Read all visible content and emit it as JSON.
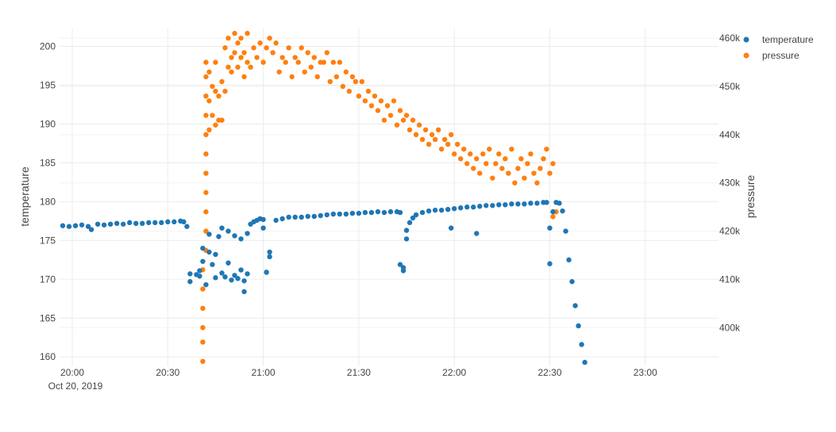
{
  "chart_data": {
    "type": "scatter",
    "title": "",
    "x_date_label": "Oct 20, 2019",
    "xlabel": "",
    "xlim": [
      "19:56",
      "23:23"
    ],
    "x_ticks": [
      "20:00",
      "20:30",
      "21:00",
      "21:30",
      "22:00",
      "22:30",
      "23:00"
    ],
    "y_left": {
      "label": "temperature",
      "ylim": [
        158.8,
        202.3
      ],
      "ticks": [
        "160",
        "165",
        "170",
        "175",
        "180",
        "185",
        "190",
        "195",
        "200"
      ]
    },
    "y_right": {
      "label": "pressure",
      "ylim": [
        392000,
        462000
      ],
      "ticks": [
        "400k",
        "410k",
        "420k",
        "430k",
        "440k",
        "450k",
        "460k"
      ]
    },
    "grid": true,
    "legend_position": "top-right",
    "colors": {
      "temperature": "#1f77b4",
      "pressure": "#ff7f0e"
    },
    "series": [
      {
        "name": "temperature",
        "axis": "left",
        "points": [
          [
            "19:57",
            176.9
          ],
          [
            "19:59",
            176.8
          ],
          [
            "20:01",
            176.9
          ],
          [
            "20:03",
            177.0
          ],
          [
            "20:05",
            176.8
          ],
          [
            "20:06",
            176.4
          ],
          [
            "20:08",
            177.1
          ],
          [
            "20:10",
            177.0
          ],
          [
            "20:12",
            177.1
          ],
          [
            "20:14",
            177.2
          ],
          [
            "20:16",
            177.1
          ],
          [
            "20:18",
            177.3
          ],
          [
            "20:20",
            177.2
          ],
          [
            "20:22",
            177.2
          ],
          [
            "20:24",
            177.3
          ],
          [
            "20:26",
            177.3
          ],
          [
            "20:28",
            177.3
          ],
          [
            "20:30",
            177.4
          ],
          [
            "20:32",
            177.4
          ],
          [
            "20:34",
            177.5
          ],
          [
            "20:35",
            177.4
          ],
          [
            "20:36",
            176.8
          ],
          [
            "20:37",
            170.7
          ],
          [
            "20:37",
            169.7
          ],
          [
            "20:39",
            170.6
          ],
          [
            "20:40",
            170.4
          ],
          [
            "20:40",
            171.1
          ],
          [
            "20:41",
            174.0
          ],
          [
            "20:41",
            172.3
          ],
          [
            "20:42",
            169.3
          ],
          [
            "20:43",
            175.8
          ],
          [
            "20:43",
            173.5
          ],
          [
            "20:44",
            171.9
          ],
          [
            "20:45",
            170.2
          ],
          [
            "20:45",
            173.2
          ],
          [
            "20:46",
            175.5
          ],
          [
            "20:47",
            176.6
          ],
          [
            "20:47",
            170.8
          ],
          [
            "20:48",
            170.3
          ],
          [
            "20:49",
            172.1
          ],
          [
            "20:49",
            176.2
          ],
          [
            "20:50",
            169.9
          ],
          [
            "20:51",
            175.6
          ],
          [
            "20:51",
            170.5
          ],
          [
            "20:52",
            170.1
          ],
          [
            "20:53",
            171.2
          ],
          [
            "20:53",
            175.2
          ],
          [
            "20:54",
            169.8
          ],
          [
            "20:54",
            168.4
          ],
          [
            "20:55",
            175.9
          ],
          [
            "20:55",
            170.7
          ],
          [
            "20:56",
            177.1
          ],
          [
            "20:57",
            177.4
          ],
          [
            "20:58",
            177.6
          ],
          [
            "20:59",
            177.8
          ],
          [
            "21:00",
            177.7
          ],
          [
            "21:00",
            176.6
          ],
          [
            "21:01",
            170.9
          ],
          [
            "21:01",
            170.9
          ],
          [
            "21:02",
            172.9
          ],
          [
            "21:02",
            173.5
          ],
          [
            "21:04",
            177.6
          ],
          [
            "21:06",
            177.8
          ],
          [
            "21:08",
            178.0
          ],
          [
            "21:10",
            178.0
          ],
          [
            "21:12",
            178.0
          ],
          [
            "21:14",
            178.1
          ],
          [
            "21:16",
            178.1
          ],
          [
            "21:18",
            178.2
          ],
          [
            "21:20",
            178.3
          ],
          [
            "21:22",
            178.4
          ],
          [
            "21:24",
            178.4
          ],
          [
            "21:26",
            178.4
          ],
          [
            "21:28",
            178.5
          ],
          [
            "21:30",
            178.5
          ],
          [
            "21:32",
            178.6
          ],
          [
            "21:34",
            178.6
          ],
          [
            "21:36",
            178.7
          ],
          [
            "21:38",
            178.6
          ],
          [
            "21:40",
            178.7
          ],
          [
            "21:42",
            178.7
          ],
          [
            "21:43",
            178.6
          ],
          [
            "21:43",
            171.9
          ],
          [
            "21:44",
            171.1
          ],
          [
            "21:44",
            171.5
          ],
          [
            "21:45",
            175.2
          ],
          [
            "21:45",
            176.3
          ],
          [
            "21:46",
            177.3
          ],
          [
            "21:47",
            177.9
          ],
          [
            "21:48",
            178.3
          ],
          [
            "21:50",
            178.6
          ],
          [
            "21:52",
            178.8
          ],
          [
            "21:54",
            178.9
          ],
          [
            "21:56",
            178.9
          ],
          [
            "21:58",
            179.0
          ],
          [
            "21:59",
            176.6
          ],
          [
            "22:00",
            179.1
          ],
          [
            "22:02",
            179.2
          ],
          [
            "22:04",
            179.3
          ],
          [
            "22:06",
            179.3
          ],
          [
            "22:07",
            175.9
          ],
          [
            "22:08",
            179.4
          ],
          [
            "22:10",
            179.5
          ],
          [
            "22:12",
            179.5
          ],
          [
            "22:14",
            179.6
          ],
          [
            "22:16",
            179.6
          ],
          [
            "22:18",
            179.7
          ],
          [
            "22:20",
            179.7
          ],
          [
            "22:22",
            179.7
          ],
          [
            "22:24",
            179.8
          ],
          [
            "22:26",
            179.8
          ],
          [
            "22:28",
            179.9
          ],
          [
            "22:29",
            179.9
          ],
          [
            "22:30",
            172.0
          ],
          [
            "22:30",
            176.6
          ],
          [
            "22:31",
            178.7
          ],
          [
            "22:32",
            179.9
          ],
          [
            "22:33",
            179.8
          ],
          [
            "22:34",
            178.8
          ],
          [
            "22:35",
            176.2
          ],
          [
            "22:36",
            172.5
          ],
          [
            "22:37",
            169.7
          ],
          [
            "22:38",
            166.6
          ],
          [
            "22:39",
            164.0
          ],
          [
            "22:40",
            161.6
          ],
          [
            "22:41",
            159.3
          ]
        ]
      },
      {
        "name": "pressure",
        "axis": "right",
        "points": [
          [
            "20:41",
            393000
          ],
          [
            "20:41",
            397000
          ],
          [
            "20:41",
            400000
          ],
          [
            "20:41",
            404000
          ],
          [
            "20:41",
            408000
          ],
          [
            "20:41",
            412000
          ],
          [
            "20:42",
            416000
          ],
          [
            "20:42",
            420000
          ],
          [
            "20:42",
            424000
          ],
          [
            "20:42",
            428000
          ],
          [
            "20:42",
            432000
          ],
          [
            "20:42",
            436000
          ],
          [
            "20:42",
            440000
          ],
          [
            "20:42",
            444000
          ],
          [
            "20:42",
            448000
          ],
          [
            "20:42",
            452000
          ],
          [
            "20:42",
            455000
          ],
          [
            "20:43",
            441000
          ],
          [
            "20:43",
            447000
          ],
          [
            "20:43",
            453000
          ],
          [
            "20:44",
            444000
          ],
          [
            "20:44",
            450000
          ],
          [
            "20:45",
            442000
          ],
          [
            "20:45",
            449000
          ],
          [
            "20:45",
            455000
          ],
          [
            "20:46",
            443000
          ],
          [
            "20:46",
            448000
          ],
          [
            "20:47",
            443000
          ],
          [
            "20:47",
            451000
          ],
          [
            "20:48",
            449000
          ],
          [
            "20:48",
            458000
          ],
          [
            "20:49",
            454000
          ],
          [
            "20:49",
            460000
          ],
          [
            "20:50",
            453000
          ],
          [
            "20:50",
            456000
          ],
          [
            "20:51",
            457000
          ],
          [
            "20:51",
            461000
          ],
          [
            "20:52",
            454000
          ],
          [
            "20:52",
            459000
          ],
          [
            "20:53",
            456000
          ],
          [
            "20:53",
            460000
          ],
          [
            "20:54",
            452000
          ],
          [
            "20:54",
            457000
          ],
          [
            "20:55",
            455000
          ],
          [
            "20:55",
            461000
          ],
          [
            "20:56",
            454000
          ],
          [
            "20:57",
            458000
          ],
          [
            "20:58",
            456000
          ],
          [
            "20:59",
            459000
          ],
          [
            "21:00",
            455000
          ],
          [
            "21:01",
            458000
          ],
          [
            "21:02",
            460000
          ],
          [
            "21:03",
            457000
          ],
          [
            "21:04",
            459000
          ],
          [
            "21:05",
            453000
          ],
          [
            "21:06",
            456000
          ],
          [
            "21:07",
            455000
          ],
          [
            "21:08",
            458000
          ],
          [
            "21:09",
            452000
          ],
          [
            "21:10",
            456000
          ],
          [
            "21:11",
            455000
          ],
          [
            "21:12",
            458000
          ],
          [
            "21:13",
            453000
          ],
          [
            "21:14",
            457000
          ],
          [
            "21:15",
            454000
          ],
          [
            "21:16",
            456000
          ],
          [
            "21:17",
            452000
          ],
          [
            "21:18",
            455000
          ],
          [
            "21:19",
            455000
          ],
          [
            "21:20",
            457000
          ],
          [
            "21:21",
            451000
          ],
          [
            "21:22",
            455000
          ],
          [
            "21:23",
            452000
          ],
          [
            "21:24",
            455000
          ],
          [
            "21:25",
            450000
          ],
          [
            "21:26",
            453000
          ],
          [
            "21:27",
            449000
          ],
          [
            "21:28",
            452000
          ],
          [
            "21:29",
            451000
          ],
          [
            "21:30",
            448000
          ],
          [
            "21:31",
            451000
          ],
          [
            "21:32",
            447000
          ],
          [
            "21:33",
            449000
          ],
          [
            "21:34",
            446000
          ],
          [
            "21:35",
            448000
          ],
          [
            "21:36",
            445000
          ],
          [
            "21:37",
            447000
          ],
          [
            "21:38",
            443000
          ],
          [
            "21:39",
            446000
          ],
          [
            "21:40",
            444000
          ],
          [
            "21:41",
            447000
          ],
          [
            "21:42",
            442000
          ],
          [
            "21:43",
            445000
          ],
          [
            "21:44",
            443000
          ],
          [
            "21:45",
            444000
          ],
          [
            "21:46",
            441000
          ],
          [
            "21:47",
            443000
          ],
          [
            "21:48",
            440000
          ],
          [
            "21:49",
            442000
          ],
          [
            "21:50",
            439000
          ],
          [
            "21:51",
            441000
          ],
          [
            "21:52",
            438000
          ],
          [
            "21:53",
            440000
          ],
          [
            "21:54",
            439000
          ],
          [
            "21:55",
            441000
          ],
          [
            "21:56",
            437000
          ],
          [
            "21:57",
            439000
          ],
          [
            "21:58",
            438000
          ],
          [
            "21:59",
            440000
          ],
          [
            "22:00",
            436000
          ],
          [
            "22:01",
            438000
          ],
          [
            "22:02",
            435000
          ],
          [
            "22:03",
            437000
          ],
          [
            "22:04",
            434000
          ],
          [
            "22:05",
            436000
          ],
          [
            "22:06",
            433000
          ],
          [
            "22:07",
            435000
          ],
          [
            "22:08",
            432000
          ],
          [
            "22:09",
            436000
          ],
          [
            "22:10",
            434000
          ],
          [
            "22:11",
            437000
          ],
          [
            "22:12",
            431000
          ],
          [
            "22:13",
            434000
          ],
          [
            "22:14",
            436000
          ],
          [
            "22:15",
            433000
          ],
          [
            "22:16",
            435000
          ],
          [
            "22:17",
            432000
          ],
          [
            "22:18",
            437000
          ],
          [
            "22:19",
            430000
          ],
          [
            "22:20",
            433000
          ],
          [
            "22:21",
            435000
          ],
          [
            "22:22",
            431000
          ],
          [
            "22:23",
            434000
          ],
          [
            "22:24",
            436000
          ],
          [
            "22:25",
            432000
          ],
          [
            "22:26",
            430000
          ],
          [
            "22:27",
            433000
          ],
          [
            "22:28",
            435000
          ],
          [
            "22:29",
            437000
          ],
          [
            "22:30",
            432000
          ],
          [
            "22:31",
            434000
          ],
          [
            "22:31",
            423000
          ],
          [
            "22:32",
            424000
          ]
        ]
      }
    ]
  }
}
